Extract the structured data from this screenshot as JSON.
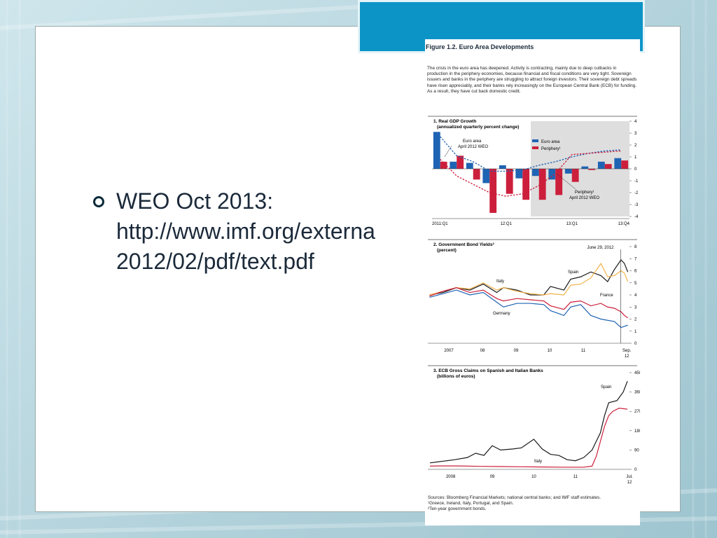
{
  "slide": {
    "bullet_lines": [
      "WEO Oct 2013:",
      "http://www.imf.org/externa",
      "2012/02/pdf/text.pdf"
    ]
  },
  "figure": {
    "title": "Figure 1.2.  Euro Area Developments",
    "description": "The crisis in the euro area has deepened. Activity is contracting, mainly due to deep cutbacks in production in the periphery economies, because financial and fiscal conditions are very tight. Sovereign issuers and banks in the periphery are struggling to attract foreign investors. Their sovereign debt spreads have risen appreciably, and their banks rely increasingly on the European Central Bank (ECB) for funding. As a result, they have cut back domestic credit.",
    "sources": [
      "Sources: Bloomberg Financial Markets; national central banks; and IMF staff estimates.",
      "¹Greece, Ireland, Italy, Portugal, and Spain.",
      "²Ten-year government bonds."
    ],
    "colors": {
      "euro": "#1f64b4",
      "periphery": "#cc1f3c",
      "black": "#1a1a1a",
      "orange": "#f2b24a",
      "shade": "#dedede"
    }
  },
  "chart_data": [
    {
      "type": "bar",
      "title": "1. Real GDP Growth",
      "subtitle": "(annualized quarterly percent change)",
      "x_tick_labels": [
        "2011:Q1",
        "12:Q1",
        "13:Q1",
        "13:Q4"
      ],
      "categories": [
        "2011Q1",
        "2011Q2",
        "2011Q3",
        "2011Q4",
        "2012Q1",
        "2012Q2",
        "2012Q3",
        "2012Q4",
        "2013Q1",
        "2013Q2",
        "2013Q3",
        "2013Q4"
      ],
      "ylim": [
        -4,
        4
      ],
      "y_ticks": [
        -4,
        -3,
        -2,
        -1,
        0,
        1,
        2,
        3,
        4
      ],
      "shaded_from_index": 6,
      "series": [
        {
          "name": "Euro area",
          "values": [
            3.1,
            0.6,
            0.5,
            -1.2,
            0.3,
            -0.8,
            -0.6,
            -0.9,
            -0.4,
            0.2,
            0.6,
            0.9
          ]
        },
        {
          "name": "Periphery¹",
          "values": [
            0.6,
            1.1,
            -0.9,
            -3.7,
            -2.1,
            -2.6,
            -2.6,
            -2.2,
            -1.1,
            -0.1,
            0.4,
            0.7
          ]
        }
      ],
      "reference_lines": [
        {
          "name": "Euro area",
          "label": "Euro area April 2012 WEO",
          "values": [
            2.7,
            1.1,
            0.6,
            -0.2,
            -0.2,
            -0.1,
            0.3,
            0.6,
            1.0,
            1.3,
            1.5,
            1.6
          ]
        },
        {
          "name": "Periphery¹",
          "label": "Periphery¹ April 2012 WEO",
          "values": [
            0.8,
            -0.6,
            -1.3,
            -2.0,
            -2.3,
            -2.1,
            -1.4,
            -0.4,
            1.2,
            1.3,
            1.4,
            1.5
          ]
        }
      ],
      "legend": [
        "Euro area",
        "Periphery¹"
      ],
      "annotation_labels": [
        "Euro area",
        "April 2012 WEO",
        "Periphery¹",
        "April 2012 WEO"
      ]
    },
    {
      "type": "line",
      "title": "2. Government Bond Yields²",
      "subtitle": "(percent)",
      "x_tick_labels": [
        "2007",
        "08",
        "09",
        "10",
        "11",
        "Sep.",
        "12"
      ],
      "x_range": [
        2006.75,
        2012.75
      ],
      "ylim": [
        0,
        8
      ],
      "y_ticks": [
        0,
        1,
        2,
        3,
        4,
        5,
        6,
        7,
        8
      ],
      "annotation": {
        "label": "June 29, 2012",
        "x": 2012.49
      },
      "series": [
        {
          "name": "Spain",
          "color_key": "black",
          "x": [
            2006.8,
            2007.2,
            2007.6,
            2008.0,
            2008.4,
            2008.8,
            2009.0,
            2009.4,
            2009.8,
            2010.2,
            2010.4,
            2010.8,
            2011.0,
            2011.3,
            2011.6,
            2011.9,
            2012.1,
            2012.3,
            2012.5,
            2012.6,
            2012.7
          ],
          "y": [
            4.0,
            4.2,
            4.6,
            4.4,
            4.9,
            4.2,
            4.6,
            4.4,
            4.0,
            4.0,
            4.7,
            4.4,
            5.3,
            5.5,
            5.9,
            5.6,
            5.1,
            6.1,
            6.9,
            6.6,
            5.9
          ]
        },
        {
          "name": "Italy",
          "color_key": "orange",
          "x": [
            2006.8,
            2007.2,
            2007.6,
            2008.0,
            2008.4,
            2008.8,
            2009.0,
            2009.4,
            2009.8,
            2010.2,
            2010.4,
            2010.8,
            2011.0,
            2011.3,
            2011.6,
            2011.9,
            2012.1,
            2012.3,
            2012.5,
            2012.6,
            2012.7
          ],
          "y": [
            4.0,
            4.3,
            4.6,
            4.5,
            5.0,
            4.4,
            4.6,
            4.3,
            4.1,
            4.0,
            4.1,
            4.0,
            4.8,
            4.9,
            5.4,
            6.6,
            5.5,
            5.6,
            6.0,
            5.8,
            5.1
          ]
        },
        {
          "name": "France",
          "color_key": "periphery",
          "x": [
            2006.8,
            2007.2,
            2007.6,
            2008.0,
            2008.4,
            2008.8,
            2009.0,
            2009.4,
            2009.8,
            2010.2,
            2010.4,
            2010.8,
            2011.0,
            2011.3,
            2011.6,
            2011.9,
            2012.1,
            2012.3,
            2012.5,
            2012.6,
            2012.7
          ],
          "y": [
            3.9,
            4.3,
            4.6,
            4.2,
            4.4,
            3.7,
            3.5,
            3.7,
            3.6,
            3.5,
            3.1,
            2.8,
            3.4,
            3.5,
            3.1,
            3.3,
            3.0,
            2.9,
            2.6,
            2.3,
            2.1
          ]
        },
        {
          "name": "Germany",
          "color_key": "euro",
          "x": [
            2006.8,
            2007.2,
            2007.6,
            2008.0,
            2008.4,
            2008.8,
            2009.0,
            2009.4,
            2009.8,
            2010.2,
            2010.4,
            2010.8,
            2011.0,
            2011.3,
            2011.6,
            2011.9,
            2012.1,
            2012.3,
            2012.5,
            2012.6,
            2012.7
          ],
          "y": [
            3.8,
            4.1,
            4.4,
            4.0,
            4.2,
            3.4,
            3.0,
            3.3,
            3.3,
            3.2,
            2.7,
            2.3,
            3.0,
            3.2,
            2.3,
            2.0,
            1.9,
            1.8,
            1.3,
            1.4,
            1.5
          ]
        }
      ]
    },
    {
      "type": "line",
      "title": "3. ECB Gross Claims on Spanish and Italian Banks",
      "subtitle": "(billions of euros)",
      "x_tick_labels": [
        "2008",
        "09",
        "10",
        "11",
        "Jul.",
        "12"
      ],
      "x_range": [
        2007.75,
        2012.6
      ],
      "ylim": [
        0,
        450
      ],
      "y_ticks": [
        0,
        90,
        180,
        270,
        360,
        450
      ],
      "series": [
        {
          "name": "Spain",
          "color_key": "black",
          "x": [
            2007.8,
            2008.0,
            2008.4,
            2008.7,
            2008.9,
            2009.1,
            2009.3,
            2009.5,
            2009.8,
            2010.0,
            2010.3,
            2010.5,
            2010.7,
            2010.9,
            2011.1,
            2011.3,
            2011.5,
            2011.7,
            2011.9,
            2012.0,
            2012.1,
            2012.3,
            2012.45,
            2012.55
          ],
          "y": [
            30,
            35,
            45,
            55,
            75,
            65,
            110,
            90,
            95,
            100,
            140,
            95,
            70,
            65,
            45,
            40,
            55,
            90,
            170,
            250,
            310,
            320,
            360,
            410
          ]
        },
        {
          "name": "Italy",
          "color_key": "periphery",
          "x": [
            2007.8,
            2008.0,
            2008.5,
            2009.0,
            2009.5,
            2010.0,
            2010.5,
            2011.0,
            2011.5,
            2011.7,
            2011.8,
            2011.9,
            2012.0,
            2012.1,
            2012.2,
            2012.35,
            2012.55
          ],
          "y": [
            15,
            16,
            16,
            14,
            13,
            12,
            11,
            10,
            10,
            15,
            60,
            130,
            200,
            250,
            270,
            285,
            280
          ]
        }
      ]
    }
  ]
}
